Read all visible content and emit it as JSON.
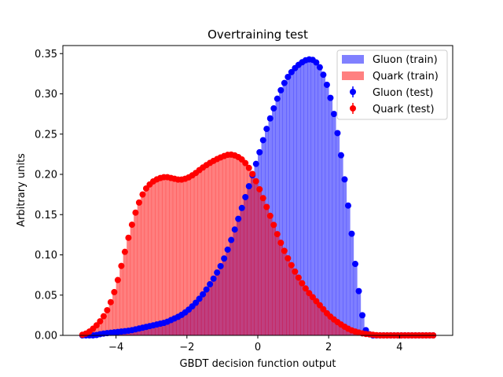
{
  "chart_data": {
    "type": "histogram-with-points",
    "title": "Overtraining test",
    "xlabel": "GBDT decision function output",
    "ylabel": "Arbitrary units",
    "xlim": [
      -5.5,
      5.5
    ],
    "ylim": [
      0,
      0.36
    ],
    "xticks": [
      -4,
      -2,
      0,
      2,
      4
    ],
    "xtick_labels": [
      "−4",
      "−2",
      "0",
      "2",
      "4"
    ],
    "yticks": [
      0.0,
      0.05,
      0.1,
      0.15,
      0.2,
      0.25,
      0.3,
      0.35
    ],
    "ytick_labels": [
      "0.00",
      "0.05",
      "0.10",
      "0.15",
      "0.20",
      "0.25",
      "0.30",
      "0.35"
    ],
    "grid": false,
    "legend_position": "top-right",
    "bin_width": 0.1,
    "gluon_train_anchors": [
      [
        -5.0,
        0.0
      ],
      [
        -4.8,
        0.0
      ],
      [
        -4.6,
        0.0
      ],
      [
        -4.4,
        0.002
      ],
      [
        -4.2,
        0.003
      ],
      [
        -4.0,
        0.004
      ],
      [
        -3.8,
        0.005
      ],
      [
        -3.6,
        0.006
      ],
      [
        -3.4,
        0.008
      ],
      [
        -3.2,
        0.01
      ],
      [
        -3.0,
        0.012
      ],
      [
        -2.8,
        0.014
      ],
      [
        -2.6,
        0.016
      ],
      [
        -2.4,
        0.02
      ],
      [
        -2.2,
        0.024
      ],
      [
        -2.0,
        0.03
      ],
      [
        -1.8,
        0.038
      ],
      [
        -1.6,
        0.048
      ],
      [
        -1.4,
        0.06
      ],
      [
        -1.2,
        0.074
      ],
      [
        -1.0,
        0.09
      ],
      [
        -0.8,
        0.112
      ],
      [
        -0.6,
        0.138
      ],
      [
        -0.4,
        0.165
      ],
      [
        -0.2,
        0.192
      ],
      [
        0.0,
        0.22
      ],
      [
        0.2,
        0.25
      ],
      [
        0.4,
        0.276
      ],
      [
        0.6,
        0.3
      ],
      [
        0.8,
        0.318
      ],
      [
        1.0,
        0.33
      ],
      [
        1.2,
        0.338
      ],
      [
        1.4,
        0.343
      ],
      [
        1.6,
        0.342
      ],
      [
        1.8,
        0.33
      ],
      [
        2.0,
        0.305
      ],
      [
        2.2,
        0.265
      ],
      [
        2.4,
        0.21
      ],
      [
        2.6,
        0.145
      ],
      [
        2.8,
        0.07
      ],
      [
        2.9,
        0.04
      ],
      [
        3.0,
        0.01
      ],
      [
        3.1,
        0.003
      ],
      [
        3.2,
        0.0
      ],
      [
        5.0,
        0.0
      ]
    ],
    "quark_train_anchors": [
      [
        -5.0,
        0.0
      ],
      [
        -4.8,
        0.003
      ],
      [
        -4.6,
        0.01
      ],
      [
        -4.4,
        0.02
      ],
      [
        -4.2,
        0.035
      ],
      [
        -4.0,
        0.06
      ],
      [
        -3.8,
        0.095
      ],
      [
        -3.6,
        0.13
      ],
      [
        -3.4,
        0.16
      ],
      [
        -3.2,
        0.18
      ],
      [
        -3.0,
        0.19
      ],
      [
        -2.8,
        0.195
      ],
      [
        -2.6,
        0.197
      ],
      [
        -2.4,
        0.195
      ],
      [
        -2.2,
        0.193
      ],
      [
        -2.0,
        0.195
      ],
      [
        -1.8,
        0.2
      ],
      [
        -1.6,
        0.207
      ],
      [
        -1.4,
        0.213
      ],
      [
        -1.2,
        0.218
      ],
      [
        -1.0,
        0.222
      ],
      [
        -0.8,
        0.225
      ],
      [
        -0.6,
        0.223
      ],
      [
        -0.4,
        0.217
      ],
      [
        -0.2,
        0.205
      ],
      [
        0.0,
        0.187
      ],
      [
        0.2,
        0.165
      ],
      [
        0.4,
        0.143
      ],
      [
        0.6,
        0.12
      ],
      [
        0.8,
        0.1
      ],
      [
        1.0,
        0.083
      ],
      [
        1.2,
        0.068
      ],
      [
        1.4,
        0.055
      ],
      [
        1.6,
        0.045
      ],
      [
        1.8,
        0.035
      ],
      [
        2.0,
        0.025
      ],
      [
        2.2,
        0.018
      ],
      [
        2.4,
        0.012
      ],
      [
        2.6,
        0.007
      ],
      [
        2.8,
        0.004
      ],
      [
        3.0,
        0.002
      ],
      [
        3.2,
        0.001
      ],
      [
        3.4,
        0.0
      ],
      [
        5.0,
        0.0
      ]
    ],
    "series": [
      {
        "name": "Gluon (train)",
        "kind": "histogram",
        "color": "#8080ff"
      },
      {
        "name": "Quark (train)",
        "kind": "histogram",
        "color": "#ff8080"
      },
      {
        "name": "Gluon (test)",
        "kind": "points",
        "color": "#0000ff"
      },
      {
        "name": "Quark (test)",
        "kind": "points",
        "color": "#ff0000"
      }
    ]
  }
}
